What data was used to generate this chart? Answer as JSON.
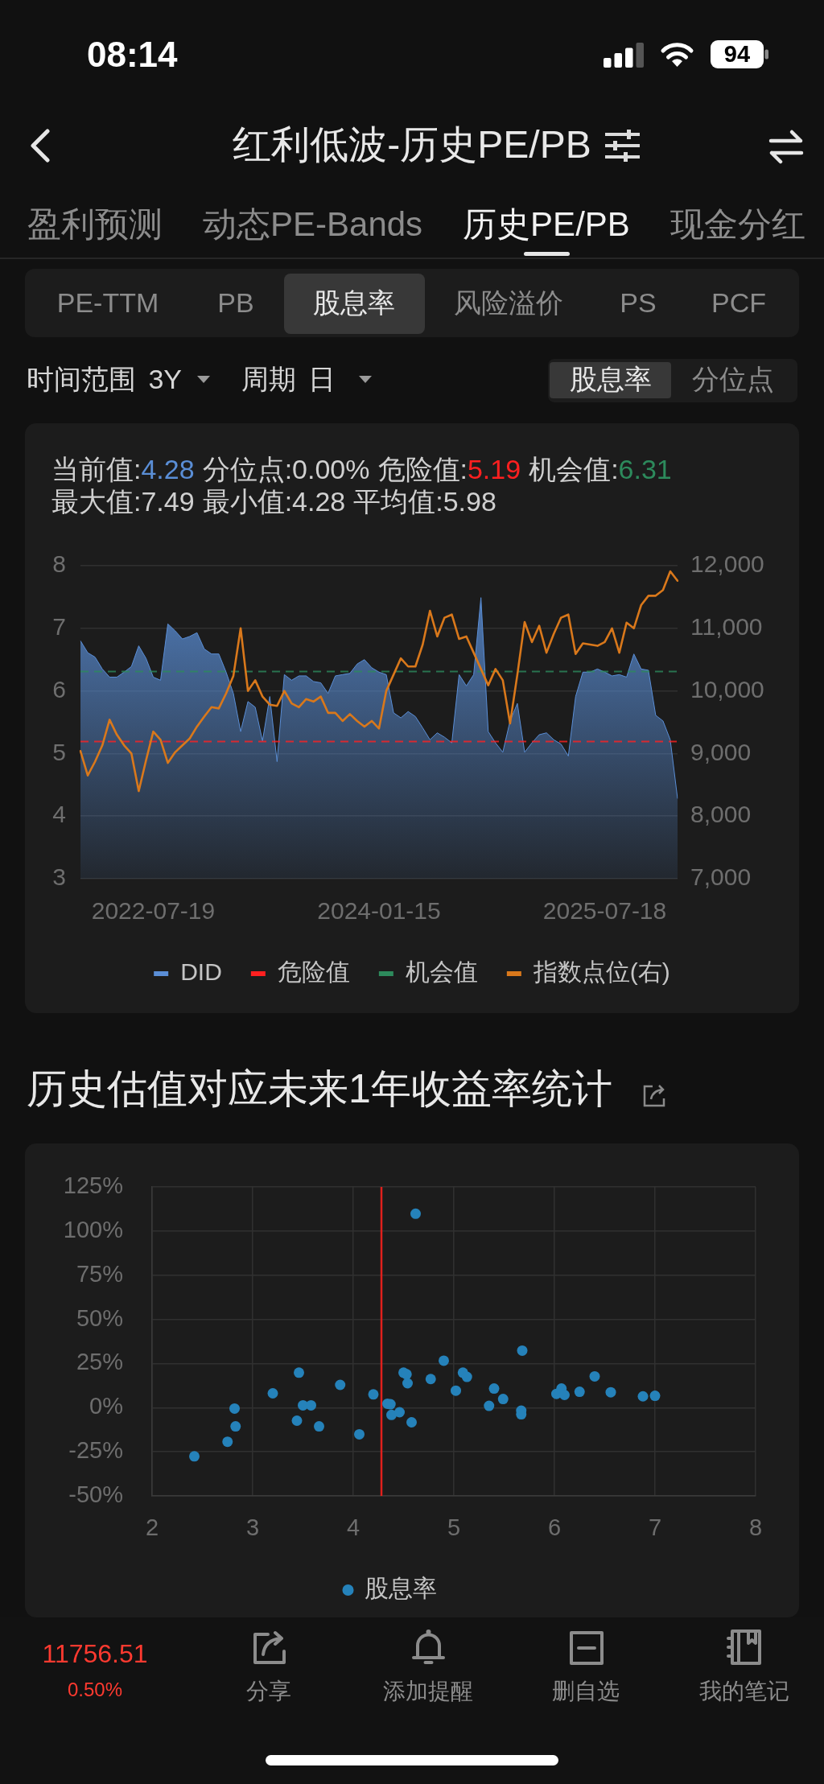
{
  "chart_data": [
    {
      "type": "other",
      "title": "红利低波-历史PE/PB",
      "annotations": [
        "08:14",
        "94",
        "盈利预测",
        "动态PE-Bands",
        "历史PE/PB",
        "现金分红",
        "PE-TTM",
        "PB",
        "股息率",
        "风险溢价",
        "PS",
        "PCF",
        "时间范围 3Y",
        "周期 日",
        "股息率",
        "分位点"
      ]
    },
    {
      "type": "area",
      "annotations": [
        "当前值:4.28",
        "分位点:0.00%",
        "危险值:5.19",
        "机会值:6.31",
        "最大值:7.49",
        "最小值:4.28",
        "平均值:5.98"
      ],
      "categories": [
        null,
        null,
        null,
        null,
        null,
        null,
        null,
        null,
        null,
        null,
        "2022-07-19",
        null,
        null,
        null,
        null,
        null,
        null,
        null,
        null,
        null,
        null,
        null,
        null,
        null,
        null,
        null,
        null,
        null,
        null,
        null,
        null,
        null,
        null,
        null,
        null,
        null,
        null,
        null,
        null,
        null,
        null,
        "2024-01-15",
        null,
        null,
        null,
        null,
        null,
        null,
        null,
        null,
        null,
        null,
        null,
        null,
        null,
        null,
        null,
        null,
        null,
        null,
        null,
        null,
        null,
        null,
        null,
        null,
        null,
        null,
        null,
        null,
        null,
        null,
        "2025-07-18",
        null,
        null,
        null,
        null,
        null,
        null,
        null,
        null,
        null,
        null
      ],
      "series": [
        {
          "name": "DID",
          "color": "#5a8ed6",
          "values": [
            6.8,
            6.61,
            6.54,
            6.35,
            6.22,
            6.22,
            6.3,
            6.39,
            6.72,
            6.52,
            6.22,
            6.17,
            7.07,
            6.96,
            6.83,
            6.87,
            6.93,
            6.67,
            6.59,
            6.59,
            6.3,
            5.96,
            5.35,
            5.83,
            5.74,
            5.2,
            5.91,
            4.87,
            6.26,
            6.17,
            6.24,
            6.24,
            6.15,
            6.13,
            5.96,
            6.24,
            6.26,
            6.28,
            6.43,
            6.5,
            6.37,
            6.3,
            6.26,
            5.65,
            5.57,
            5.67,
            5.59,
            5.41,
            5.22,
            5.33,
            5.26,
            5.17,
            6.26,
            6.08,
            6.26,
            7.49,
            5.35,
            5.17,
            5.02,
            5.52,
            5.8,
            5.02,
            5.17,
            5.3,
            5.33,
            5.22,
            5.15,
            4.96,
            5.91,
            6.3,
            6.3,
            6.35,
            6.3,
            6.24,
            6.26,
            6.22,
            6.59,
            6.35,
            6.33,
            5.61,
            5.52,
            5.22,
            4.28
          ]
        },
        {
          "name": "指数点位(右)",
          "type": "line",
          "axis": "y2",
          "color": "#d9781b",
          "values": [
            9040,
            8650,
            8870,
            9130,
            9540,
            9300,
            9130,
            9000,
            8400,
            8890,
            9350,
            9220,
            8850,
            9020,
            9130,
            9240,
            9430,
            9590,
            9740,
            9720,
            9960,
            10240,
            11000,
            10000,
            10170,
            9910,
            9780,
            9760,
            10000,
            9800,
            9740,
            9870,
            9830,
            9910,
            9650,
            9650,
            9520,
            9630,
            9520,
            9430,
            9520,
            9400,
            10000,
            10260,
            10520,
            10390,
            10390,
            10740,
            11280,
            10870,
            11170,
            11220,
            10830,
            10870,
            10610,
            10350,
            10090,
            10350,
            10170,
            9480,
            10260,
            11100,
            10780,
            11040,
            10610,
            10910,
            11170,
            11220,
            10590,
            10760,
            10740,
            10720,
            10780,
            11000,
            10610,
            11090,
            11000,
            11370,
            11520,
            11520,
            11610,
            11910,
            11760
          ]
        }
      ],
      "ylim": [
        3,
        8
      ],
      "yticks": [
        3,
        4,
        5,
        6,
        7,
        8
      ],
      "y2lim": [
        7000,
        12000
      ],
      "y2ticks": [
        {
          "value": 7000,
          "label": "7,000"
        },
        {
          "value": 8000,
          "label": "8,000"
        },
        {
          "value": 9000,
          "label": "9,000"
        },
        {
          "value": 10000,
          "label": "10,000"
        },
        {
          "value": 11000,
          "label": "11,000"
        },
        {
          "value": 12000,
          "label": "12,000"
        }
      ],
      "ref_lines": [
        {
          "axis": "y",
          "value": 5.19,
          "label": "危险值",
          "color": "#ff2020",
          "line_style": "dashed"
        },
        {
          "axis": "y",
          "value": 6.31,
          "label": "机会值",
          "color": "#2d8a5c",
          "line_style": "dashed"
        }
      ],
      "grid": "y",
      "legend": "bottom"
    },
    {
      "type": "scatter",
      "title": "历史估值对应未来1年收益率统计",
      "series": [
        {
          "name": "股息率",
          "color": "#2582ba",
          "x": [
            2.42,
            2.75,
            2.82,
            2.83,
            3.2,
            3.46,
            3.44,
            3.5,
            3.58,
            3.66,
            3.87,
            4.06,
            4.2,
            4.34,
            4.37,
            4.38,
            4.46,
            4.5,
            4.53,
            4.54,
            4.58,
            4.62,
            4.77,
            4.9,
            5.02,
            5.09,
            5.13,
            5.35,
            5.4,
            5.49,
            5.68,
            5.67,
            5.67,
            6.02,
            6.07,
            6.1,
            6.25,
            6.4,
            6.56,
            6.88,
            7.0
          ],
          "values": [
            -27.6,
            -19.3,
            -0.5,
            -10.6,
            8.1,
            19.8,
            -7.4,
            1.3,
            1.3,
            -10.6,
            12.9,
            -15.1,
            7.5,
            2.2,
            1.9,
            -4.1,
            -2.6,
            19.8,
            18.9,
            13.8,
            -8.3,
            109.8,
            16.2,
            26.6,
            9.6,
            19.8,
            17.4,
            1.0,
            10.8,
            4.9,
            32.3,
            -1.7,
            -3.8,
            7.8,
            10.8,
            7.2,
            9.0,
            17.7,
            8.7,
            6.4,
            6.7
          ]
        }
      ],
      "xlim": [
        2,
        8
      ],
      "xticks": [
        2,
        3,
        4,
        5,
        6,
        7,
        8
      ],
      "ylim": [
        -50,
        125
      ],
      "yticks": [
        {
          "value": -50,
          "label": "-50%"
        },
        {
          "value": -25,
          "label": "-25%"
        },
        {
          "value": 0,
          "label": "0%"
        },
        {
          "value": 25,
          "label": "25%"
        },
        {
          "value": 50,
          "label": "50%"
        },
        {
          "value": 75,
          "label": "75%"
        },
        {
          "value": 100,
          "label": "100%"
        },
        {
          "value": 125,
          "label": "125%"
        }
      ],
      "ref_lines": [
        {
          "axis": "x",
          "value": 4.28,
          "color": "#e0201c"
        }
      ],
      "grid": true,
      "legend": "bottom",
      "marker": "circle"
    },
    {
      "type": "other",
      "annotations": [
        "11756.51",
        "0.50%",
        "分享",
        "添加提醒",
        "删自选",
        "我的笔记"
      ]
    }
  ]
}
